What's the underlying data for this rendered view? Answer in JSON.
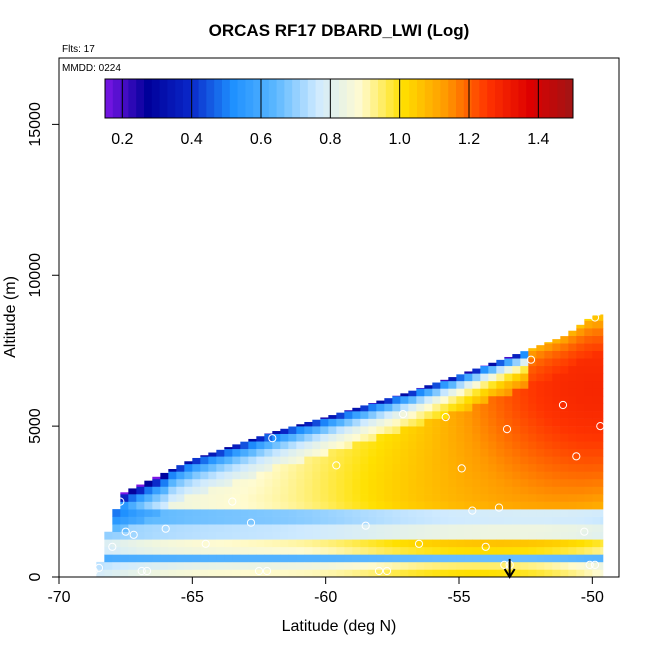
{
  "chart_data": {
    "type": "heatmap",
    "title": "ORCAS RF17 DBARD_LWI (Log)",
    "flights_note": "Flts: 17",
    "date_note": "MMDD: 0224",
    "xlabel": "Latitude (deg N)",
    "ylabel": "Altitude (m)",
    "xlim": [
      -70,
      -49
    ],
    "ylim": [
      0,
      17200
    ],
    "x_ticks": [
      -70,
      -65,
      -60,
      -55,
      -50
    ],
    "y_ticks": [
      0,
      5000,
      10000,
      15000
    ],
    "colorbar": {
      "range": [
        0.15,
        1.5
      ],
      "ticks": [
        0.2,
        0.4,
        0.6,
        0.8,
        1.0,
        1.2,
        1.4
      ],
      "tick_labels": [
        "0.2",
        "0.4",
        "0.6",
        "0.8",
        "1.0",
        "1.2",
        "1.4"
      ],
      "colors": [
        "#7b16e6",
        "#00009a",
        "#0a27c8",
        "#1e90ff",
        "#5ab7ff",
        "#cfeaff",
        "#fffbd0",
        "#ffe000",
        "#ff9a00",
        "#ff3300",
        "#dd0000",
        "#a01515"
      ]
    },
    "grid": false,
    "domain_envelope": {
      "top_edge": [
        [
          -67.8,
          2700
        ],
        [
          -65,
          3900
        ],
        [
          -62,
          4800
        ],
        [
          -60,
          5300
        ],
        [
          -57,
          6100
        ],
        [
          -55,
          6700
        ],
        [
          -52.5,
          7500
        ],
        [
          -51,
          8000
        ],
        [
          -50,
          8650
        ],
        [
          -49.6,
          8700
        ]
      ],
      "bottom_alt": 0,
      "left_edge": [
        [
          -68.8,
          0
        ],
        [
          -68.3,
          1500
        ],
        [
          -67.8,
          2700
        ]
      ],
      "right_edge": [
        [
          -49.6,
          0
        ],
        [
          -49.6,
          8700
        ]
      ]
    },
    "value_model": {
      "base": 0.7,
      "hotspots": [
        {
          "lat": -51,
          "alt": 4800,
          "value": 1.35
        },
        {
          "lat": -49.8,
          "alt": 6500,
          "value": 1.45
        },
        {
          "lat": -54.5,
          "alt": 2300,
          "value": 1.2
        },
        {
          "lat": -57,
          "alt": 3200,
          "value": 1.05
        },
        {
          "lat": -63,
          "alt": 1000,
          "value": 0.95
        }
      ],
      "top_edge_value": 0.35,
      "left_top_value": 0.2,
      "bands": [
        {
          "alt": 2000,
          "value": 0.45
        },
        {
          "alt": 1500,
          "value": 0.6
        },
        {
          "alt": 600,
          "value": 0.55
        }
      ]
    },
    "observation_points": [
      [
        -67.7,
        2500
      ],
      [
        -65.7,
        3900
      ],
      [
        -63.5,
        2500
      ],
      [
        -62,
        4600
      ],
      [
        -59.6,
        3700
      ],
      [
        -57.1,
        5400
      ],
      [
        -55.5,
        5300
      ],
      [
        -54.9,
        3600
      ],
      [
        -53.2,
        4900
      ],
      [
        -52.3,
        7200
      ],
      [
        -51.1,
        5700
      ],
      [
        -50.6,
        4000
      ],
      [
        -49.7,
        5000
      ],
      [
        -49.9,
        8600
      ],
      [
        -62.8,
        1800
      ],
      [
        -58.5,
        1700
      ],
      [
        -56.5,
        1100
      ],
      [
        -54.5,
        2200
      ],
      [
        -53.5,
        2300
      ],
      [
        -66,
        1600
      ],
      [
        -67.5,
        1500
      ],
      [
        -68,
        1000
      ],
      [
        -68.5,
        300
      ],
      [
        -68.7,
        200
      ],
      [
        -66.7,
        200
      ],
      [
        -66.9,
        200
      ],
      [
        -64.5,
        1100
      ],
      [
        -62.2,
        200
      ],
      [
        -62.5,
        200
      ],
      [
        -58,
        200
      ],
      [
        -57.7,
        200
      ],
      [
        -54,
        1000
      ],
      [
        -53.3,
        400
      ],
      [
        -53.1,
        400
      ],
      [
        -50.1,
        400
      ],
      [
        -49.9,
        400
      ],
      [
        -50.3,
        1500
      ],
      [
        -67.2,
        1400
      ]
    ],
    "marker": {
      "type": "arrow-down",
      "lat": -53.1,
      "alt_from": 600,
      "alt_to": 0
    }
  }
}
